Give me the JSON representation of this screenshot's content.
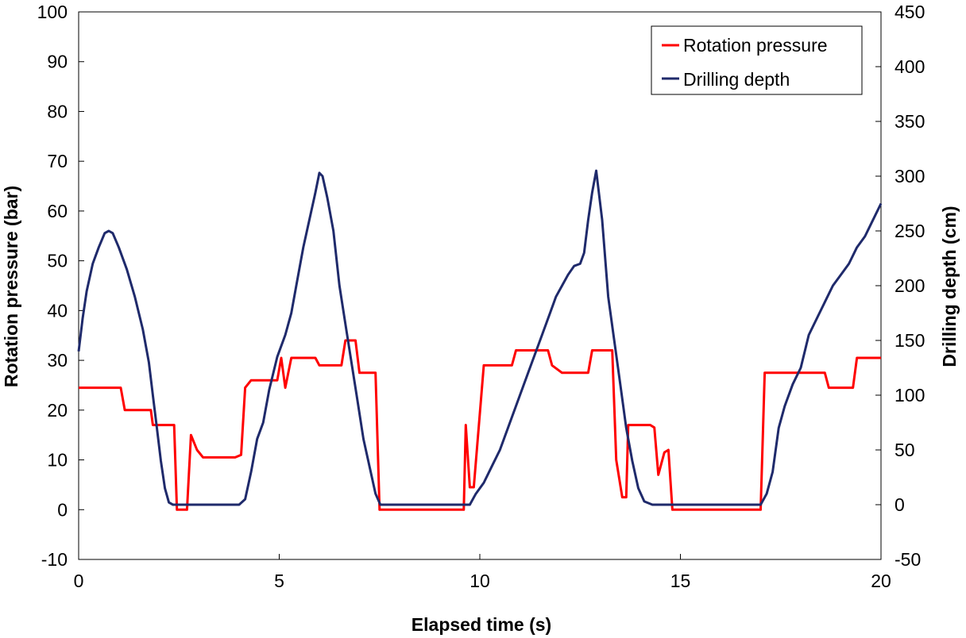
{
  "chart_data": {
    "type": "line",
    "title": "",
    "xlabel": "Elapsed time (s)",
    "ylabel": "Rotation pressure (bar)",
    "y2label": "Drilling depth (cm)",
    "xlim": [
      0,
      20
    ],
    "ylim": [
      -10,
      100
    ],
    "y2lim": [
      -50,
      450
    ],
    "grid": false,
    "legend_position": "top-right",
    "x_ticks": [
      "0",
      "5",
      "10",
      "15",
      "20"
    ],
    "y_ticks": [
      "-10",
      "0",
      "10",
      "20",
      "30",
      "40",
      "50",
      "60",
      "70",
      "80",
      "90",
      "100"
    ],
    "y2_ticks": [
      "-50",
      "0",
      "50",
      "100",
      "150",
      "200",
      "250",
      "300",
      "350",
      "400",
      "450"
    ],
    "series": [
      {
        "name": "Rotation pressure",
        "axis": "left",
        "color": "#ff0000",
        "x": [
          0,
          1.05,
          1.15,
          1.8,
          1.85,
          2.38,
          2.45,
          2.7,
          2.8,
          2.95,
          3.1,
          3.9,
          4.05,
          4.15,
          4.3,
          4.95,
          5.05,
          5.15,
          5.3,
          5.9,
          6.0,
          6.55,
          6.65,
          6.9,
          7.0,
          7.4,
          7.5,
          9.6,
          9.65,
          9.75,
          9.85,
          10.1,
          10.2,
          10.8,
          10.9,
          11.7,
          11.8,
          12.05,
          12.15,
          12.7,
          12.8,
          13.3,
          13.4,
          13.55,
          13.65,
          13.7,
          14.25,
          14.35,
          14.45,
          14.6,
          14.7,
          14.8,
          16.9,
          17.0,
          17.1,
          18.6,
          18.7,
          19.3,
          19.4,
          20.0
        ],
        "y": [
          24.5,
          24.5,
          20,
          20,
          17,
          17,
          0,
          0,
          15,
          12,
          10.5,
          10.5,
          11,
          24.5,
          26,
          26,
          30.5,
          24.5,
          30.5,
          30.5,
          29,
          29,
          34,
          34,
          27.5,
          27.5,
          0,
          0,
          17,
          4.5,
          4.5,
          29,
          29,
          29,
          32,
          32,
          29,
          27.5,
          27.5,
          27.5,
          32,
          32,
          10,
          2.5,
          2.5,
          17,
          17,
          16.5,
          7,
          11.5,
          12,
          0,
          0,
          0,
          27.5,
          27.5,
          24.5,
          24.5,
          30.5,
          30.5
        ]
      },
      {
        "name": "Drilling depth",
        "axis": "right",
        "color": "#1f2a6b",
        "x": [
          0,
          0.1,
          0.2,
          0.35,
          0.5,
          0.65,
          0.75,
          0.85,
          1.0,
          1.2,
          1.4,
          1.6,
          1.75,
          1.85,
          1.95,
          2.05,
          2.15,
          2.25,
          2.35,
          4.0,
          4.15,
          4.3,
          4.45,
          4.6,
          4.75,
          4.95,
          5.15,
          5.3,
          5.45,
          5.6,
          5.75,
          5.9,
          6.0,
          6.08,
          6.2,
          6.35,
          6.5,
          6.65,
          6.8,
          6.95,
          7.1,
          7.25,
          7.4,
          7.52,
          9.75,
          9.9,
          10.1,
          10.3,
          10.5,
          10.75,
          11.0,
          11.25,
          11.5,
          11.75,
          11.9,
          12.05,
          12.2,
          12.35,
          12.5,
          12.6,
          12.7,
          12.8,
          12.9,
          13.05,
          13.2,
          13.35,
          13.5,
          13.65,
          13.8,
          13.95,
          14.1,
          14.3,
          16.85,
          17.0,
          17.15,
          17.3,
          17.45,
          17.6,
          17.8,
          18.0,
          18.2,
          18.4,
          18.6,
          18.8,
          19.0,
          19.2,
          19.4,
          19.6,
          19.8,
          20.0
        ],
        "y": [
          140,
          170,
          195,
          220,
          235,
          248,
          250,
          248,
          235,
          215,
          190,
          160,
          130,
          100,
          70,
          40,
          15,
          2,
          0,
          0,
          5,
          30,
          60,
          75,
          105,
          135,
          155,
          175,
          205,
          235,
          260,
          285,
          303,
          300,
          280,
          250,
          200,
          165,
          130,
          95,
          60,
          35,
          10,
          0,
          0,
          10,
          20,
          35,
          50,
          75,
          100,
          125,
          150,
          175,
          190,
          200,
          210,
          218,
          220,
          230,
          260,
          285,
          305,
          260,
          190,
          150,
          110,
          70,
          40,
          15,
          3,
          0,
          0,
          0,
          10,
          30,
          70,
          90,
          110,
          125,
          155,
          170,
          185,
          200,
          210,
          220,
          235,
          245,
          260,
          275
        ]
      }
    ]
  }
}
